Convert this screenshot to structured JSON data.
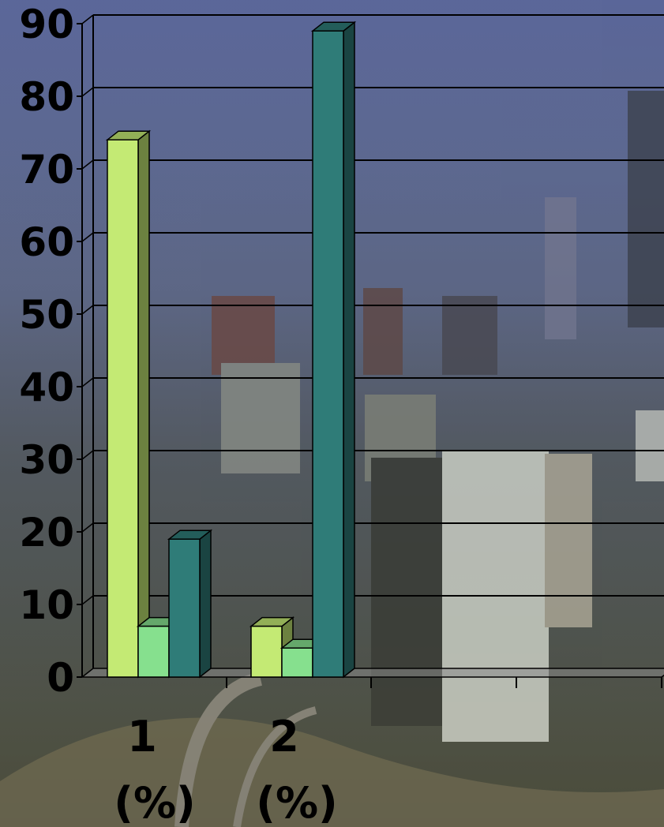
{
  "chart_data": {
    "type": "bar",
    "title": "",
    "xlabel": "",
    "ylabel": "",
    "categories": [
      {
        "number": "1",
        "unit": "(%)"
      },
      {
        "number": "2",
        "unit": "(%)"
      }
    ],
    "series": [
      {
        "values": [
          74,
          7
        ],
        "color": "#c4ea74"
      },
      {
        "values": [
          7,
          4
        ],
        "color": "#86e08e"
      },
      {
        "values": [
          19,
          89
        ],
        "color": "#2f7c78"
      }
    ],
    "ylim": [
      0,
      90
    ],
    "yticks": [
      0,
      10,
      20,
      30,
      40,
      50,
      60,
      70,
      80,
      90
    ],
    "grid": true,
    "legend": "none",
    "style": "3d"
  }
}
